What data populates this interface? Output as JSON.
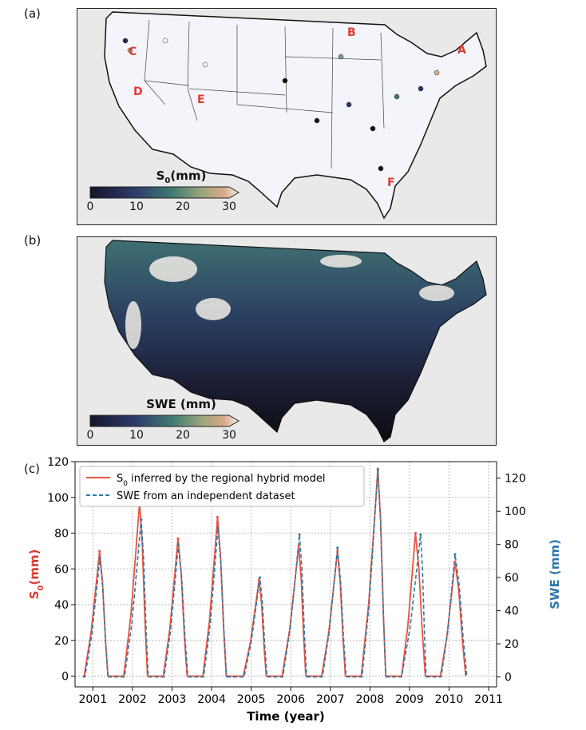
{
  "panels": {
    "a": {
      "label": "(a)",
      "colorbar": {
        "title_main": "S",
        "title_sub": "0",
        "title_unit": "(mm)",
        "ticks": [
          "0",
          "10",
          "20",
          "30"
        ],
        "vmin": 0,
        "vmax": 30
      },
      "sites": [
        "A",
        "B",
        "C",
        "D",
        "E",
        "F"
      ]
    },
    "b": {
      "label": "(b)",
      "colorbar": {
        "title": "SWE (mm)",
        "ticks": [
          "0",
          "10",
          "20",
          "30"
        ],
        "vmin": 0,
        "vmax": 30
      }
    },
    "c": {
      "label": "(c)"
    }
  },
  "colors": {
    "s0_line": "#e8543f",
    "swe_line": "#2f78a8",
    "s0_axis_label": "#e03a2f",
    "swe_axis_label": "#2f78a8",
    "site_label": "#e03a2f",
    "land": "#f3f5fa",
    "background": "#e9e9ea"
  },
  "chart_data": {
    "type": "line",
    "xlabel": "Time (year)",
    "ylabel_left_main": "S",
    "ylabel_left_sub": "0",
    "ylabel_left_unit": "(mm)",
    "ylabel_right": "SWE (mm)",
    "xlim": [
      2000.55,
      2011.2
    ],
    "ylim_left": [
      -6,
      120
    ],
    "ylim_right": [
      -6,
      130
    ],
    "x_ticks": [
      2001,
      2002,
      2003,
      2004,
      2005,
      2006,
      2007,
      2008,
      2009,
      2010,
      2011
    ],
    "y_ticks_left": [
      0,
      20,
      40,
      60,
      80,
      100,
      120
    ],
    "y_ticks_right": [
      0,
      20,
      40,
      60,
      80,
      100,
      120
    ],
    "grid": true,
    "legend": {
      "position": "upper-left",
      "s0_main": "S",
      "s0_sub": "0",
      "s0_rest": " inferred by the regional hybrid model",
      "swe": "SWE from an independent dataset"
    },
    "series": [
      {
        "name": "S0 inferred by the regional hybrid model",
        "axis": "left",
        "style": "solid",
        "peaks": [
          {
            "year": 2001,
            "start": 2000.78,
            "peak_x": 2001.17,
            "peak": 70,
            "end": 2001.38
          },
          {
            "year": 2002,
            "start": 2001.78,
            "peak_x": 2002.18,
            "peak": 97,
            "end": 2002.38
          },
          {
            "year": 2003,
            "start": 2002.78,
            "peak_x": 2003.15,
            "peak": 77,
            "end": 2003.38
          },
          {
            "year": 2004,
            "start": 2003.78,
            "peak_x": 2004.15,
            "peak": 89,
            "end": 2004.37
          },
          {
            "year": 2005,
            "start": 2004.8,
            "peak_x": 2005.2,
            "peak": 54,
            "end": 2005.38
          },
          {
            "year": 2006,
            "start": 2005.78,
            "peak_x": 2006.2,
            "peak": 73,
            "end": 2006.38
          },
          {
            "year": 2007,
            "start": 2006.78,
            "peak_x": 2007.18,
            "peak": 70,
            "end": 2007.38
          },
          {
            "year": 2008,
            "start": 2007.78,
            "peak_x": 2008.2,
            "peak": 116,
            "end": 2008.4
          },
          {
            "year": 2009,
            "start": 2008.8,
            "peak_x": 2009.15,
            "peak": 80,
            "end": 2009.4
          },
          {
            "year": 2010,
            "start": 2009.78,
            "peak_x": 2010.15,
            "peak": 64,
            "end": 2010.42
          }
        ]
      },
      {
        "name": "SWE from an independent dataset",
        "axis": "right",
        "style": "dashed",
        "peaks": [
          {
            "year": 2001,
            "start": 2000.8,
            "peak_x": 2001.18,
            "peak": 72,
            "end": 2001.38
          },
          {
            "year": 2002,
            "start": 2001.8,
            "peak_x": 2002.22,
            "peak": 95,
            "end": 2002.4
          },
          {
            "year": 2003,
            "start": 2002.8,
            "peak_x": 2003.16,
            "peak": 80,
            "end": 2003.4
          },
          {
            "year": 2004,
            "start": 2003.8,
            "peak_x": 2004.16,
            "peak": 90,
            "end": 2004.38
          },
          {
            "year": 2005,
            "start": 2004.82,
            "peak_x": 2005.22,
            "peak": 60,
            "end": 2005.4
          },
          {
            "year": 2006,
            "start": 2005.8,
            "peak_x": 2006.22,
            "peak": 86,
            "end": 2006.4
          },
          {
            "year": 2007,
            "start": 2006.8,
            "peak_x": 2007.18,
            "peak": 78,
            "end": 2007.4
          },
          {
            "year": 2008,
            "start": 2007.8,
            "peak_x": 2008.2,
            "peak": 125,
            "end": 2008.4
          },
          {
            "year": 2009,
            "start": 2008.8,
            "peak_x": 2009.28,
            "peak": 86,
            "end": 2009.42
          },
          {
            "year": 2010,
            "start": 2009.8,
            "peak_x": 2010.15,
            "peak": 74,
            "end": 2010.45
          }
        ]
      }
    ]
  }
}
